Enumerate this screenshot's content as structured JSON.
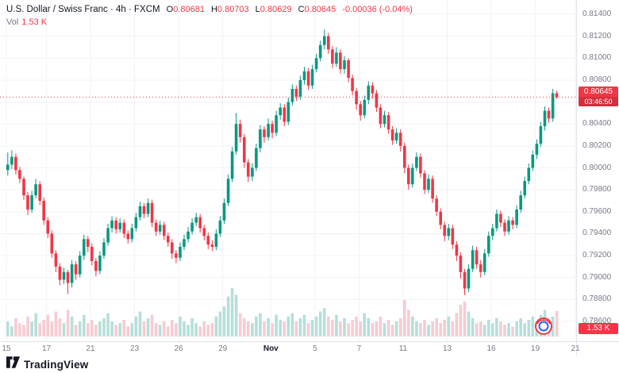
{
  "header": {
    "symbol_title": "U.S. Dollar / Swiss Franc · 4h · FXCM",
    "ohlc": {
      "o_label": "O",
      "o": "0.80681",
      "h_label": "H",
      "h": "0.80703",
      "l_label": "L",
      "l": "0.80629",
      "c_label": "C",
      "c": "0.80645",
      "change": "-0.00036 (-0.04%)"
    },
    "vol_label": "Vol",
    "vol_value": "1.53 K"
  },
  "price_axis": {
    "labels": [
      "0.81400",
      "0.81200",
      "0.81000",
      "0.80800",
      "0.80600",
      "0.80400",
      "0.80200",
      "0.80000",
      "0.79800",
      "0.79600",
      "0.79400",
      "0.79200",
      "0.79000",
      "0.78800",
      "0.78600"
    ],
    "last_price_badge": {
      "price": "0.80645",
      "countdown": "03:46:50"
    },
    "volume_badge": "1.53 K"
  },
  "time_axis": {
    "labels": [
      {
        "text": "15",
        "i": 0
      },
      {
        "text": "17",
        "i": 10
      },
      {
        "text": "21",
        "i": 21
      },
      {
        "text": "23",
        "i": 32
      },
      {
        "text": "26",
        "i": 43
      },
      {
        "text": "29",
        "i": 54
      },
      {
        "text": "Nov",
        "i": 66,
        "major": true
      },
      {
        "text": "5",
        "i": 77
      },
      {
        "text": "7",
        "i": 88
      },
      {
        "text": "11",
        "i": 99
      },
      {
        "text": "13",
        "i": 110
      },
      {
        "text": "16",
        "i": 121
      },
      {
        "text": "19",
        "i": 132
      },
      {
        "text": "21",
        "i": 142
      }
    ]
  },
  "footer": {
    "brand": "TradingView"
  },
  "colors": {
    "up": "#089981",
    "down": "#f23645",
    "vol_up": "#b7dfd9",
    "vol_down": "#f6ccd2",
    "grid": "#f0f3fa",
    "axis_text": "#787b86",
    "last_price_line": "#f23645"
  },
  "chart_data": {
    "type": "candlestick+volume",
    "title": "U.S. Dollar / Swiss Franc",
    "symbol": "USD/CHF",
    "timeframe": "4h",
    "exchange": "FXCM",
    "ylim": [
      0.786,
      0.814
    ],
    "price_scale": 0.0001,
    "last_price": 0.80645,
    "last_close": "0.80645",
    "last_change": "-0.00036 (-0.04%)",
    "last_volume_k": 1.53,
    "candles_ohlc_pips": [
      [
        7998,
        8014,
        7993,
        8003
      ],
      [
        8003,
        8016,
        7999,
        8010
      ],
      [
        8010,
        8013,
        7994,
        7998
      ],
      [
        7998,
        8001,
        7986,
        7990
      ],
      [
        7990,
        7992,
        7971,
        7975
      ],
      [
        7975,
        7978,
        7957,
        7962
      ],
      [
        7962,
        7979,
        7959,
        7975
      ],
      [
        7975,
        7990,
        7972,
        7985
      ],
      [
        7985,
        7988,
        7966,
        7970
      ],
      [
        7970,
        7973,
        7948,
        7952
      ],
      [
        7952,
        7955,
        7936,
        7940
      ],
      [
        7940,
        7943,
        7918,
        7922
      ],
      [
        7922,
        7925,
        7905,
        7910
      ],
      [
        7910,
        7913,
        7893,
        7898
      ],
      [
        7898,
        7909,
        7894,
        7905
      ],
      [
        7905,
        7907,
        7885,
        7895
      ],
      [
        7895,
        7916,
        7891,
        7912
      ],
      [
        7912,
        7915,
        7898,
        7903
      ],
      [
        7903,
        7924,
        7900,
        7920
      ],
      [
        7920,
        7939,
        7916,
        7935
      ],
      [
        7935,
        7938,
        7923,
        7928
      ],
      [
        7928,
        7931,
        7911,
        7915
      ],
      [
        7915,
        7918,
        7901,
        7906
      ],
      [
        7906,
        7924,
        7903,
        7920
      ],
      [
        7920,
        7936,
        7917,
        7932
      ],
      [
        7932,
        7949,
        7929,
        7945
      ],
      [
        7945,
        7956,
        7941,
        7952
      ],
      [
        7952,
        7955,
        7940,
        7944
      ],
      [
        7944,
        7954,
        7941,
        7950
      ],
      [
        7950,
        7953,
        7936,
        7940
      ],
      [
        7940,
        7943,
        7931,
        7935
      ],
      [
        7935,
        7949,
        7932,
        7945
      ],
      [
        7945,
        7959,
        7942,
        7955
      ],
      [
        7955,
        7969,
        7952,
        7965
      ],
      [
        7965,
        7968,
        7954,
        7958
      ],
      [
        7958,
        7972,
        7955,
        7968
      ],
      [
        7968,
        7971,
        7946,
        7950
      ],
      [
        7950,
        7953,
        7938,
        7942
      ],
      [
        7942,
        7952,
        7939,
        7948
      ],
      [
        7948,
        7951,
        7934,
        7938
      ],
      [
        7938,
        7941,
        7928,
        7932
      ],
      [
        7932,
        7935,
        7917,
        7922
      ],
      [
        7922,
        7925,
        7913,
        7918
      ],
      [
        7918,
        7932,
        7915,
        7928
      ],
      [
        7928,
        7939,
        7925,
        7935
      ],
      [
        7935,
        7946,
        7932,
        7942
      ],
      [
        7942,
        7954,
        7939,
        7950
      ],
      [
        7950,
        7959,
        7947,
        7955
      ],
      [
        7955,
        7958,
        7941,
        7945
      ],
      [
        7945,
        7948,
        7934,
        7938
      ],
      [
        7938,
        7941,
        7926,
        7930
      ],
      [
        7930,
        7934,
        7924,
        7928
      ],
      [
        7928,
        7944,
        7925,
        7940
      ],
      [
        7940,
        7956,
        7937,
        7952
      ],
      [
        7952,
        7972,
        7949,
        7968
      ],
      [
        7968,
        7994,
        7965,
        7990
      ],
      [
        7990,
        8019,
        7987,
        8015
      ],
      [
        8015,
        8050,
        8012,
        8040
      ],
      [
        8040,
        8044,
        8023,
        8028
      ],
      [
        8028,
        8031,
        8000,
        8005
      ],
      [
        8005,
        8008,
        7987,
        7992
      ],
      [
        7992,
        8004,
        7988,
        8000
      ],
      [
        8000,
        8022,
        7997,
        8018
      ],
      [
        8018,
        8039,
        8014,
        8035
      ],
      [
        8035,
        8038,
        8023,
        8028
      ],
      [
        8028,
        8045,
        8025,
        8040
      ],
      [
        8040,
        8043,
        8027,
        8032
      ],
      [
        8032,
        8052,
        8029,
        8048
      ],
      [
        8048,
        8059,
        8044,
        8055
      ],
      [
        8055,
        8058,
        8038,
        8042
      ],
      [
        8042,
        8064,
        8039,
        8060
      ],
      [
        8060,
        8076,
        8057,
        8072
      ],
      [
        8072,
        8075,
        8061,
        8065
      ],
      [
        8065,
        8084,
        8062,
        8080
      ],
      [
        8080,
        8092,
        8076,
        8088
      ],
      [
        8088,
        8091,
        8071,
        8075
      ],
      [
        8075,
        8094,
        8072,
        8090
      ],
      [
        8090,
        8104,
        8087,
        8100
      ],
      [
        8100,
        8116,
        8097,
        8112
      ],
      [
        8112,
        8126,
        8108,
        8120
      ],
      [
        8120,
        8123,
        8104,
        8108
      ],
      [
        8108,
        8111,
        8091,
        8095
      ],
      [
        8095,
        8110,
        8092,
        8105
      ],
      [
        8105,
        8108,
        8086,
        8090
      ],
      [
        8090,
        8102,
        8086,
        8098
      ],
      [
        8098,
        8100,
        8078,
        8082
      ],
      [
        8082,
        8085,
        8066,
        8070
      ],
      [
        8070,
        8073,
        8053,
        8058
      ],
      [
        8058,
        8061,
        8043,
        8048
      ],
      [
        8048,
        8066,
        8045,
        8062
      ],
      [
        8062,
        8079,
        8058,
        8075
      ],
      [
        8075,
        8078,
        8063,
        8068
      ],
      [
        8068,
        8071,
        8051,
        8055
      ],
      [
        8055,
        8058,
        8036,
        8040
      ],
      [
        8040,
        8052,
        8037,
        8048
      ],
      [
        8048,
        8051,
        8031,
        8035
      ],
      [
        8035,
        8038,
        8021,
        8025
      ],
      [
        8025,
        8036,
        8022,
        8032
      ],
      [
        8032,
        8035,
        8015,
        8020
      ],
      [
        8020,
        8023,
        7995,
        8000
      ],
      [
        8000,
        8003,
        7980,
        7985
      ],
      [
        7985,
        8004,
        7982,
        8000
      ],
      [
        8000,
        8014,
        7997,
        8010
      ],
      [
        8010,
        8013,
        7991,
        7995
      ],
      [
        7995,
        7998,
        7976,
        7980
      ],
      [
        7980,
        7994,
        7977,
        7990
      ],
      [
        7990,
        7993,
        7968,
        7972
      ],
      [
        7972,
        7975,
        7956,
        7960
      ],
      [
        7960,
        7963,
        7944,
        7948
      ],
      [
        7948,
        7951,
        7933,
        7938
      ],
      [
        7938,
        7949,
        7934,
        7945
      ],
      [
        7945,
        7948,
        7926,
        7930
      ],
      [
        7930,
        7933,
        7915,
        7920
      ],
      [
        7920,
        7923,
        7899,
        7905
      ],
      [
        7905,
        7908,
        7884,
        7890
      ],
      [
        7890,
        7912,
        7887,
        7908
      ],
      [
        7908,
        7929,
        7905,
        7925
      ],
      [
        7925,
        7928,
        7908,
        7912
      ],
      [
        7912,
        7916,
        7900,
        7905
      ],
      [
        7905,
        7926,
        7902,
        7922
      ],
      [
        7922,
        7942,
        7919,
        7938
      ],
      [
        7938,
        7949,
        7934,
        7945
      ],
      [
        7945,
        7962,
        7942,
        7958
      ],
      [
        7958,
        7961,
        7946,
        7950
      ],
      [
        7950,
        7953,
        7938,
        7942
      ],
      [
        7942,
        7956,
        7939,
        7952
      ],
      [
        7952,
        7955,
        7944,
        7948
      ],
      [
        7948,
        7966,
        7945,
        7962
      ],
      [
        7962,
        7979,
        7959,
        7975
      ],
      [
        7975,
        7992,
        7972,
        7988
      ],
      [
        7988,
        8004,
        7985,
        8000
      ],
      [
        8000,
        8016,
        7997,
        8012
      ],
      [
        8012,
        8026,
        8008,
        8022
      ],
      [
        8022,
        8042,
        8019,
        8038
      ],
      [
        8038,
        8056,
        8034,
        8052
      ],
      [
        8052,
        8055,
        8041,
        8045
      ],
      [
        8045,
        8072,
        8042,
        8068
      ],
      [
        8068.1,
        8070.3,
        8062.9,
        8064.5
      ]
    ],
    "volumes_k": [
      0.9,
      0.6,
      1.1,
      0.8,
      0.7,
      1.2,
      0.9,
      1.4,
      0.8,
      1.0,
      1.3,
      0.9,
      1.5,
      1.1,
      0.8,
      1.6,
      1.2,
      0.7,
      0.9,
      1.3,
      0.8,
      1.0,
      0.7,
      0.9,
      1.1,
      1.4,
      0.9,
      0.7,
      0.8,
      1.0,
      0.6,
      0.8,
      1.2,
      1.5,
      0.9,
      1.1,
      1.3,
      0.8,
      0.7,
      0.9,
      0.6,
      1.0,
      0.8,
      1.2,
      0.9,
      0.7,
      1.1,
      0.8,
      0.6,
      0.9,
      0.7,
      0.8,
      1.2,
      1.5,
      1.8,
      2.4,
      2.9,
      2.5,
      1.4,
      1.1,
      0.9,
      0.8,
      1.2,
      1.4,
      0.9,
      1.1,
      0.8,
      1.3,
      1.0,
      0.9,
      1.2,
      1.4,
      0.9,
      1.1,
      1.3,
      0.8,
      1.0,
      1.2,
      1.5,
      1.7,
      1.2,
      1.0,
      1.3,
      0.9,
      1.1,
      0.8,
      1.0,
      1.2,
      0.9,
      1.4,
      1.1,
      0.8,
      0.9,
      1.2,
      0.8,
      1.0,
      0.7,
      0.9,
      1.1,
      2.2,
      1.6,
      1.2,
      0.9,
      0.8,
      1.0,
      0.7,
      0.9,
      1.1,
      0.8,
      1.0,
      1.2,
      0.9,
      1.4,
      1.9,
      2.1,
      1.5,
      1.1,
      0.8,
      0.9,
      0.7,
      1.0,
      0.8,
      1.1,
      0.9,
      0.7,
      0.8,
      0.6,
      0.9,
      1.1,
      0.8,
      1.0,
      1.2,
      0.9,
      1.3,
      1.6,
      1.0,
      1.2,
      1.53
    ]
  }
}
